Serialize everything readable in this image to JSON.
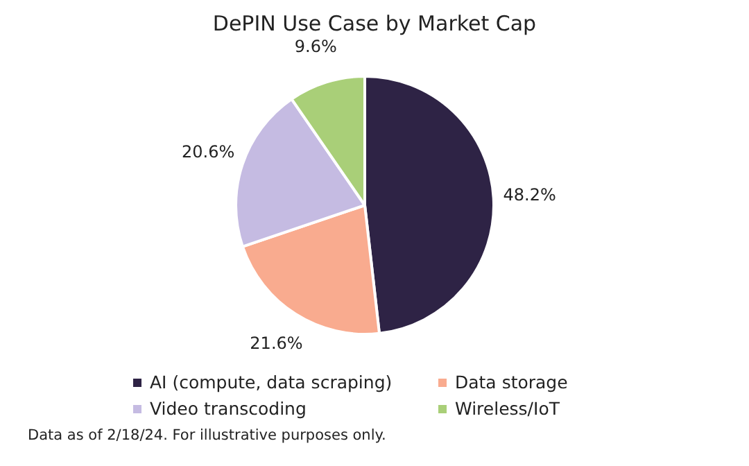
{
  "chart_data": {
    "type": "pie",
    "title": "DePIN Use Case by Market Cap",
    "categories": [
      "AI (compute, data scraping)",
      "Data storage",
      "Video transcoding",
      "Wireless/IoT"
    ],
    "values": [
      48.2,
      21.6,
      20.6,
      9.6
    ],
    "colors": [
      "#2e2345",
      "#f9ab8f",
      "#c5bbe2",
      "#a9cf78"
    ],
    "value_labels": [
      "48.2%",
      "21.6%",
      "20.6%",
      "9.6%"
    ],
    "legend": "bottom",
    "annotations": [
      "Data as of 2/18/24. For illustrative purposes only."
    ]
  }
}
